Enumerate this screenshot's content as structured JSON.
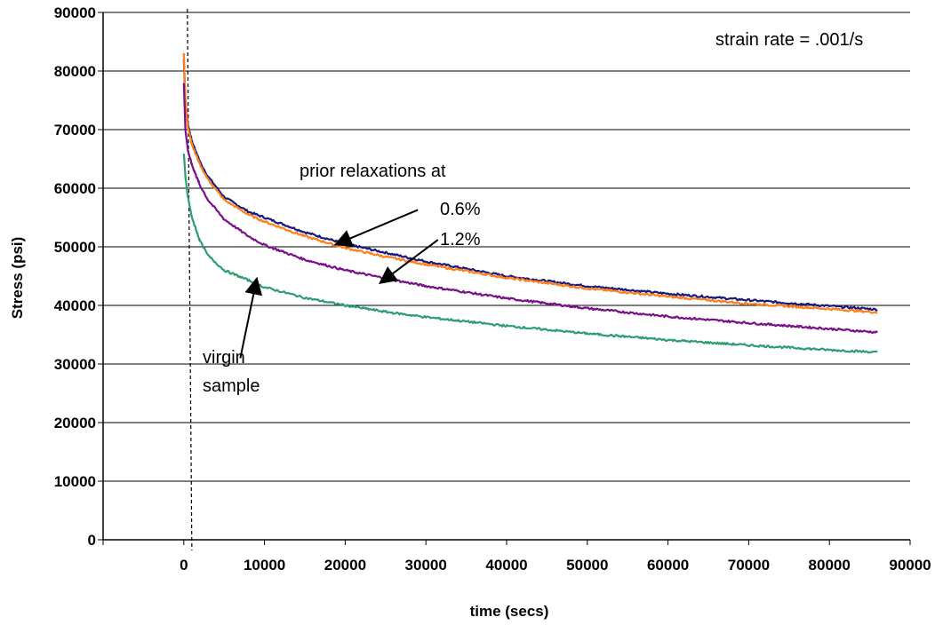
{
  "chart_data": {
    "type": "line",
    "title": "",
    "xlabel": "time (secs)",
    "ylabel": "Stress (psi)",
    "xlim": [
      -10000,
      90000
    ],
    "ylim": [
      0,
      90000
    ],
    "x_ticks": [
      "0",
      "10000",
      "20000",
      "30000",
      "40000",
      "50000",
      "60000",
      "70000",
      "80000",
      "90000"
    ],
    "y_ticks": [
      "0",
      "10000",
      "20000",
      "30000",
      "40000",
      "50000",
      "60000",
      "70000",
      "80000",
      "90000"
    ],
    "grid": "horizontal",
    "reference_line_x": 1000,
    "colors": {
      "navy": "#1a1a7a",
      "orange": "#ff7f1e",
      "purple": "#7a0f8a",
      "green": "#2e9e6e"
    },
    "series": [
      {
        "color": "#1a1a7a",
        "x": [
          0,
          200,
          500,
          1000,
          2000,
          3000,
          5000,
          8000,
          10000,
          15000,
          20000,
          25000,
          30000,
          40000,
          50000,
          60000,
          70000,
          80000,
          86000
        ],
        "y": [
          82000,
          75000,
          71000,
          68000,
          64500,
          62000,
          58500,
          56000,
          55000,
          52500,
          50500,
          49000,
          47500,
          45000,
          43300,
          42000,
          40900,
          39900,
          39300
        ]
      },
      {
        "color": "#ff7f1e",
        "x": [
          0,
          200,
          500,
          1000,
          2000,
          3000,
          5000,
          8000,
          10000,
          15000,
          20000,
          25000,
          30000,
          40000,
          50000,
          60000,
          70000,
          80000,
          86000
        ],
        "y": [
          83000,
          75000,
          70500,
          67500,
          64000,
          61500,
          58000,
          55500,
          54300,
          51800,
          49800,
          48300,
          47000,
          44700,
          42900,
          41500,
          40300,
          39400,
          38800
        ]
      },
      {
        "color": "#7a0f8a",
        "x": [
          0,
          200,
          500,
          1000,
          2000,
          3000,
          5000,
          8000,
          10000,
          15000,
          20000,
          25000,
          30000,
          40000,
          50000,
          60000,
          70000,
          80000,
          86000
        ],
        "y": [
          78000,
          70000,
          66500,
          64000,
          60500,
          58000,
          54700,
          51800,
          50300,
          47800,
          46000,
          44600,
          43300,
          41200,
          39500,
          38100,
          37000,
          36000,
          35400
        ]
      },
      {
        "color": "#2e9e6e",
        "x": [
          0,
          200,
          500,
          1000,
          2000,
          3000,
          5000,
          8000,
          10000,
          15000,
          20000,
          25000,
          30000,
          40000,
          50000,
          60000,
          70000,
          80000,
          86000
        ],
        "y": [
          66000,
          62000,
          58500,
          55000,
          51000,
          48500,
          46000,
          44300,
          43100,
          41300,
          40000,
          38900,
          38000,
          36500,
          35200,
          34100,
          33200,
          32400,
          32000
        ]
      }
    ],
    "annotations": [
      {
        "id": "strain_rate",
        "text": "strain rate = .001/s"
      },
      {
        "id": "prior",
        "text": "prior relaxations at"
      },
      {
        "id": "pct06",
        "text": "0.6%"
      },
      {
        "id": "pct12",
        "text": "1.2%"
      },
      {
        "id": "virgin1",
        "text": "virgin"
      },
      {
        "id": "virgin2",
        "text": "sample"
      }
    ],
    "arrows": [
      {
        "from": [
          29000,
          56300
        ],
        "to": [
          19000,
          50500
        ]
      },
      {
        "from": [
          31500,
          51200
        ],
        "to": [
          24500,
          44000
        ]
      },
      {
        "from": [
          7000,
          31000
        ],
        "to": [
          9000,
          44300
        ]
      }
    ]
  }
}
